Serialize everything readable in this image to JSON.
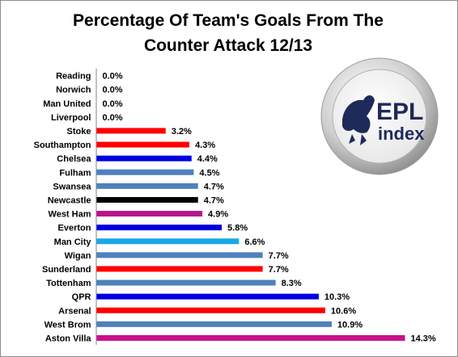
{
  "chart_data": {
    "type": "bar",
    "orientation": "horizontal",
    "title_lines": [
      "Percentage Of Team's Goals From The",
      "Counter Attack 12/13"
    ],
    "categories": [
      "Reading",
      "Norwich",
      "Man United",
      "Liverpool",
      "Stoke",
      "Southampton",
      "Chelsea",
      "Fulham",
      "Swansea",
      "Newcastle",
      "West Ham",
      "Everton",
      "Man City",
      "Wigan",
      "Sunderland",
      "Tottenham",
      "QPR",
      "Arsenal",
      "West Brom",
      "Aston Villa"
    ],
    "values": [
      0.0,
      0.0,
      0.0,
      0.0,
      3.2,
      4.3,
      4.4,
      4.5,
      4.7,
      4.7,
      4.9,
      5.8,
      6.6,
      7.7,
      7.7,
      8.3,
      10.3,
      10.6,
      10.9,
      14.3
    ],
    "value_labels": [
      "0.0%",
      "0.0%",
      "0.0%",
      "0.0%",
      "3.2%",
      "4.3%",
      "4.4%",
      "4.5%",
      "4.7%",
      "4.7%",
      "4.9%",
      "5.8%",
      "6.6%",
      "7.7%",
      "7.7%",
      "8.3%",
      "10.3%",
      "10.6%",
      "10.9%",
      "14.3%"
    ],
    "colors": [
      "#3b6fc0",
      "#3b6fc0",
      "#3b6fc0",
      "#3b6fc0",
      "#ff0000",
      "#ff0000",
      "#0000e0",
      "#4f81bd",
      "#4f81bd",
      "#000000",
      "#b8148c",
      "#0000e0",
      "#1aa8e8",
      "#4f81bd",
      "#ff0000",
      "#4f81bd",
      "#0000e0",
      "#ff0000",
      "#4f81bd",
      "#c8108c"
    ],
    "xlim": [
      0,
      14.3
    ],
    "grid": false,
    "legend": "none"
  },
  "logo": {
    "line1": "EPL",
    "line2": "index",
    "icon": "lion-icon"
  }
}
